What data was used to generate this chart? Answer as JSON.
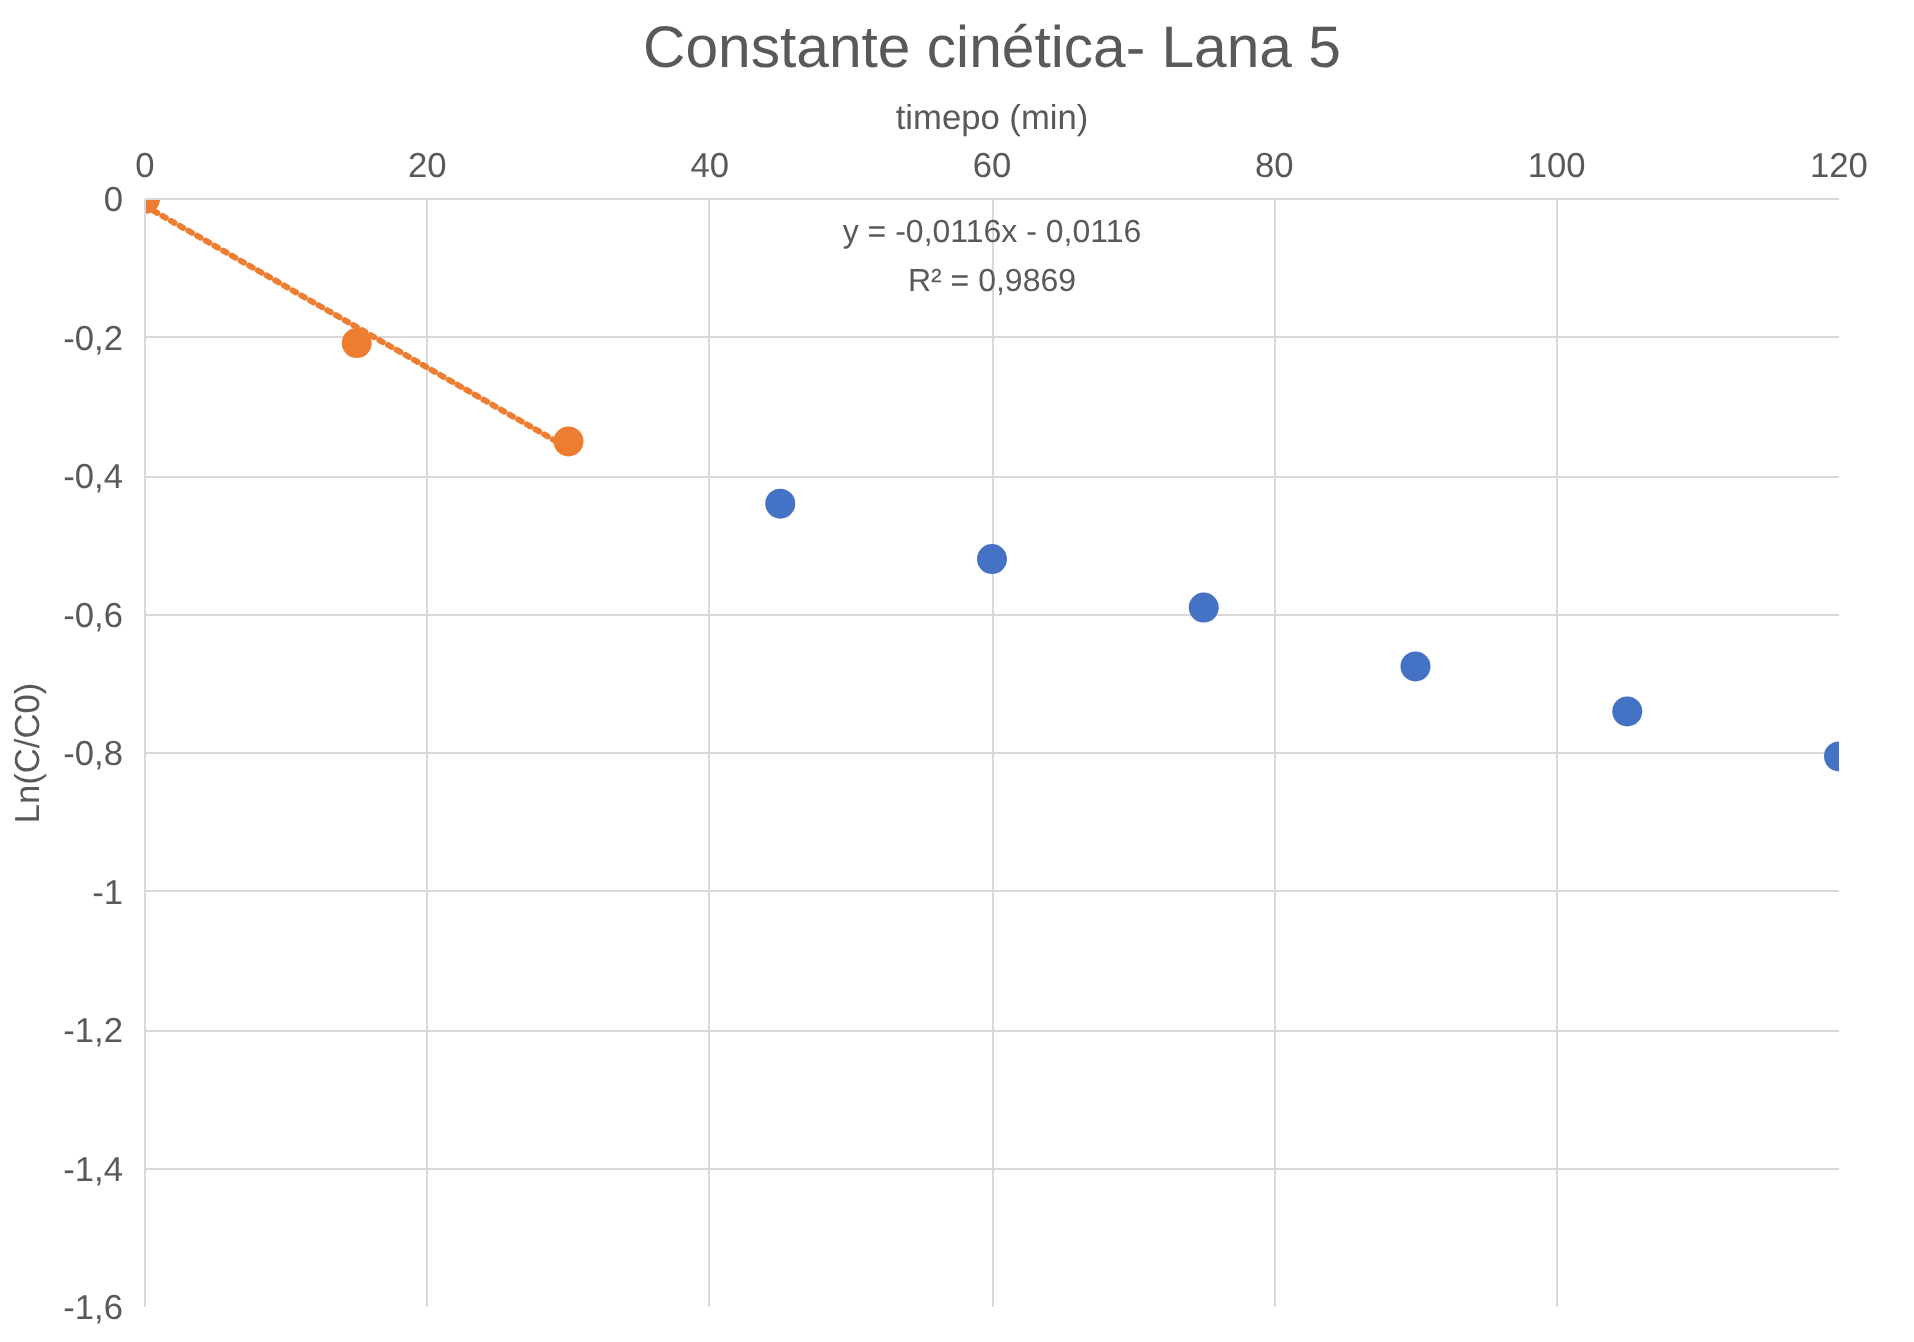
{
  "chart_data": {
    "type": "scatter",
    "title": "Constante cinética- Lana 5",
    "xlabel": "timepo (min)",
    "ylabel": "Ln(C/C0)",
    "xlim": [
      0,
      120
    ],
    "xticks": [
      0,
      20,
      40,
      60,
      80,
      100,
      120
    ],
    "ylim": [
      -1.6,
      0
    ],
    "yticks": [
      {
        "value": -1.6,
        "label": "-1,6"
      },
      {
        "value": -1.4,
        "label": "-1,4"
      },
      {
        "value": -1.2,
        "label": "-1,2"
      },
      {
        "value": -1,
        "label": "-1"
      },
      {
        "value": -0.8,
        "label": "-0,8"
      },
      {
        "value": -0.6,
        "label": "-0,6"
      },
      {
        "value": -0.4,
        "label": "-0,4"
      },
      {
        "value": -0.2,
        "label": "-0,2"
      },
      {
        "value": 0,
        "label": "0"
      }
    ],
    "grid": true,
    "marker": "circle",
    "series": [
      {
        "color": "#4472c4",
        "x": [
          45,
          60,
          75,
          90,
          105,
          120
        ],
        "values": [
          -0.44,
          -0.52,
          -0.59,
          -0.675,
          -0.74,
          -0.805
        ]
      },
      {
        "color": "#ed7d31",
        "x": [
          0,
          15,
          30
        ],
        "values": [
          0,
          -0.208,
          -0.35
        ]
      },
      {
        "type": "line",
        "color": "#ed7d31",
        "marker": "none",
        "line_style": "dotted",
        "x": [
          0,
          30
        ],
        "values": [
          -0.01,
          -0.36
        ]
      }
    ],
    "annotations": [
      "y = -0,0116x - 0,0116",
      "R² = 0,9869"
    ]
  }
}
